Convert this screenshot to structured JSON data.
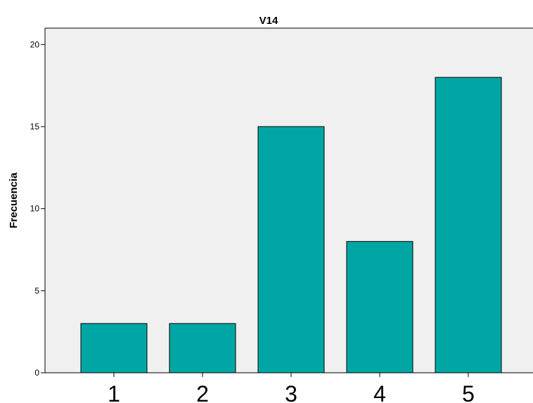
{
  "chart_data": {
    "type": "bar",
    "title": "V14",
    "xlabel": "",
    "ylabel": "Frecuencia",
    "categories": [
      "1",
      "2",
      "3",
      "4",
      "5"
    ],
    "values": [
      3,
      3,
      15,
      8,
      18
    ],
    "ylim": [
      0,
      21
    ],
    "yticks": [
      0,
      5,
      10,
      15,
      20
    ],
    "grid": false,
    "colors": {
      "bar": "#00A6A4",
      "plot_background": "#F0F0F0"
    }
  }
}
